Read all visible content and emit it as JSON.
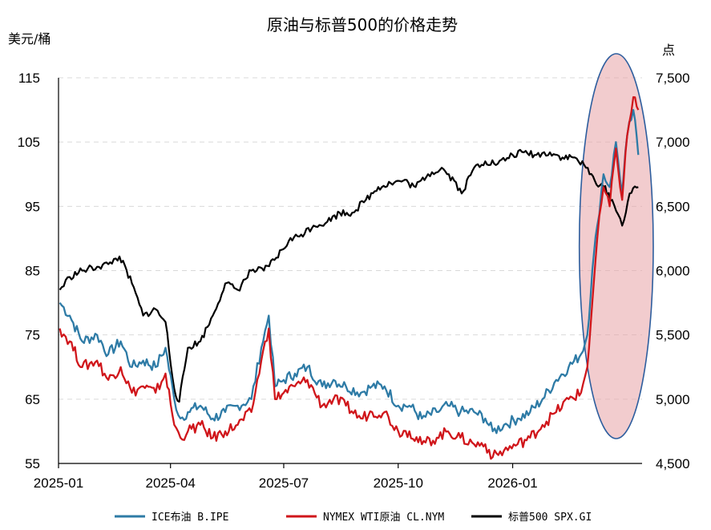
{
  "chart_data": {
    "type": "line",
    "title": "原油与标普500的价格走势",
    "ylabel_left": "美元/桶",
    "ylabel_right": "点",
    "x_ticks": [
      "2025-01",
      "2025-04",
      "2025-07",
      "2025-10",
      "2026-01"
    ],
    "y_left_ticks": [
      "115",
      "105",
      "95",
      "85",
      "75",
      "65",
      "55"
    ],
    "y_right_ticks": [
      "7,500",
      "7,000",
      "6,500",
      "6,000",
      "5,500",
      "5,000",
      "4,500"
    ],
    "y_left_range": [
      55,
      115
    ],
    "y_right_range": [
      4500,
      7500
    ],
    "x_range": [
      "2025-01-01",
      "2026-04-15"
    ],
    "grid": "horizontal dashed",
    "legend_position": "bottom",
    "highlight": "ellipse around recent period (2026-03 to 2026-04)",
    "colors": {
      "brent": "#2E7BA6",
      "wti": "#D0161B",
      "spx": "#000000",
      "highlight_fill": "#E7A3A6",
      "highlight_stroke": "#2E5E9E"
    },
    "series": [
      {
        "name": "ICE布油 B.IPE",
        "axis": "left",
        "x": [
          "2025-01-02",
          "2025-01-10",
          "2025-01-20",
          "2025-02-01",
          "2025-02-10",
          "2025-02-20",
          "2025-03-01",
          "2025-03-10",
          "2025-03-20",
          "2025-03-28",
          "2025-04-04",
          "2025-04-09",
          "2025-04-15",
          "2025-04-25",
          "2025-05-05",
          "2025-05-15",
          "2025-05-25",
          "2025-06-05",
          "2025-06-13",
          "2025-06-19",
          "2025-06-24",
          "2025-07-01",
          "2025-07-10",
          "2025-07-20",
          "2025-08-01",
          "2025-08-10",
          "2025-08-20",
          "2025-09-01",
          "2025-09-10",
          "2025-09-20",
          "2025-10-01",
          "2025-10-10",
          "2025-10-20",
          "2025-11-01",
          "2025-11-10",
          "2025-11-20",
          "2025-12-01",
          "2025-12-10",
          "2025-12-16",
          "2025-12-25",
          "2026-01-05",
          "2026-01-15",
          "2026-01-25",
          "2026-02-05",
          "2026-02-15",
          "2026-02-25",
          "2026-03-02",
          "2026-03-06",
          "2026-03-10",
          "2026-03-15",
          "2026-03-20",
          "2026-03-25",
          "2026-03-30",
          "2026-04-03",
          "2026-04-08",
          "2026-04-12"
        ],
        "values": [
          80,
          78,
          74,
          75,
          72,
          74,
          70,
          71,
          70,
          73,
          65,
          62,
          63,
          64,
          62,
          63,
          64,
          65,
          73,
          78,
          67,
          68,
          69,
          70,
          67,
          68,
          67,
          66,
          67,
          67,
          64,
          64,
          62,
          63,
          64,
          63,
          63,
          62,
          60,
          61,
          62,
          63,
          65,
          68,
          70,
          72,
          75,
          85,
          92,
          100,
          98,
          105,
          97,
          106,
          110,
          103
        ]
      },
      {
        "name": "NYMEX WTI原油 CL.NYM",
        "axis": "left",
        "x": [
          "2025-01-02",
          "2025-01-10",
          "2025-01-20",
          "2025-02-01",
          "2025-02-10",
          "2025-02-20",
          "2025-03-01",
          "2025-03-10",
          "2025-03-20",
          "2025-03-28",
          "2025-04-04",
          "2025-04-09",
          "2025-04-15",
          "2025-04-25",
          "2025-05-05",
          "2025-05-15",
          "2025-05-25",
          "2025-06-05",
          "2025-06-13",
          "2025-06-19",
          "2025-06-24",
          "2025-07-01",
          "2025-07-10",
          "2025-07-20",
          "2025-08-01",
          "2025-08-10",
          "2025-08-20",
          "2025-09-01",
          "2025-09-10",
          "2025-09-20",
          "2025-10-01",
          "2025-10-10",
          "2025-10-20",
          "2025-11-01",
          "2025-11-10",
          "2025-11-20",
          "2025-12-01",
          "2025-12-10",
          "2025-12-16",
          "2025-12-25",
          "2026-01-05",
          "2026-01-15",
          "2026-01-25",
          "2026-02-05",
          "2026-02-15",
          "2026-02-25",
          "2026-03-02",
          "2026-03-06",
          "2026-03-10",
          "2026-03-15",
          "2026-03-20",
          "2026-03-25",
          "2026-03-30",
          "2026-04-03",
          "2026-04-08",
          "2026-04-12"
        ],
        "values": [
          76,
          74,
          70,
          71,
          68,
          70,
          66,
          67,
          66,
          69,
          61,
          59,
          60,
          61,
          59,
          60,
          61,
          63,
          71,
          76,
          65,
          66,
          67,
          68,
          64,
          65,
          64,
          62,
          63,
          63,
          60,
          60,
          58,
          59,
          60,
          59,
          58,
          58,
          56,
          57,
          58,
          59,
          61,
          63,
          65,
          66,
          70,
          80,
          90,
          98,
          95,
          104,
          96,
          106,
          112,
          110
        ]
      },
      {
        "name": "标普500 SPX.GI",
        "axis": "right",
        "x": [
          "2025-01-02",
          "2025-01-10",
          "2025-01-20",
          "2025-02-01",
          "2025-02-10",
          "2025-02-19",
          "2025-03-01",
          "2025-03-10",
          "2025-03-20",
          "2025-03-28",
          "2025-04-04",
          "2025-04-08",
          "2025-04-15",
          "2025-04-25",
          "2025-05-05",
          "2025-05-15",
          "2025-05-25",
          "2025-06-05",
          "2025-06-15",
          "2025-06-25",
          "2025-07-05",
          "2025-07-15",
          "2025-07-25",
          "2025-08-05",
          "2025-08-15",
          "2025-08-25",
          "2025-09-05",
          "2025-09-15",
          "2025-09-25",
          "2025-10-05",
          "2025-10-15",
          "2025-10-25",
          "2025-11-05",
          "2025-11-15",
          "2025-11-21",
          "2025-12-01",
          "2025-12-10",
          "2025-12-20",
          "2026-01-01",
          "2026-01-10",
          "2026-01-20",
          "2026-01-31",
          "2026-02-10",
          "2026-02-20",
          "2026-03-01",
          "2026-03-08",
          "2026-03-15",
          "2026-03-22",
          "2026-03-30",
          "2026-04-05",
          "2026-04-12"
        ],
        "values": [
          5850,
          5950,
          6000,
          6030,
          6050,
          6110,
          5900,
          5650,
          5700,
          5600,
          5080,
          4980,
          5400,
          5450,
          5650,
          5900,
          5850,
          6000,
          6000,
          6100,
          6230,
          6280,
          6350,
          6380,
          6450,
          6450,
          6550,
          6650,
          6680,
          6700,
          6650,
          6750,
          6800,
          6700,
          6600,
          6800,
          6850,
          6830,
          6900,
          6920,
          6900,
          6920,
          6880,
          6880,
          6800,
          6700,
          6650,
          6550,
          6350,
          6600,
          6650
        ]
      }
    ]
  }
}
